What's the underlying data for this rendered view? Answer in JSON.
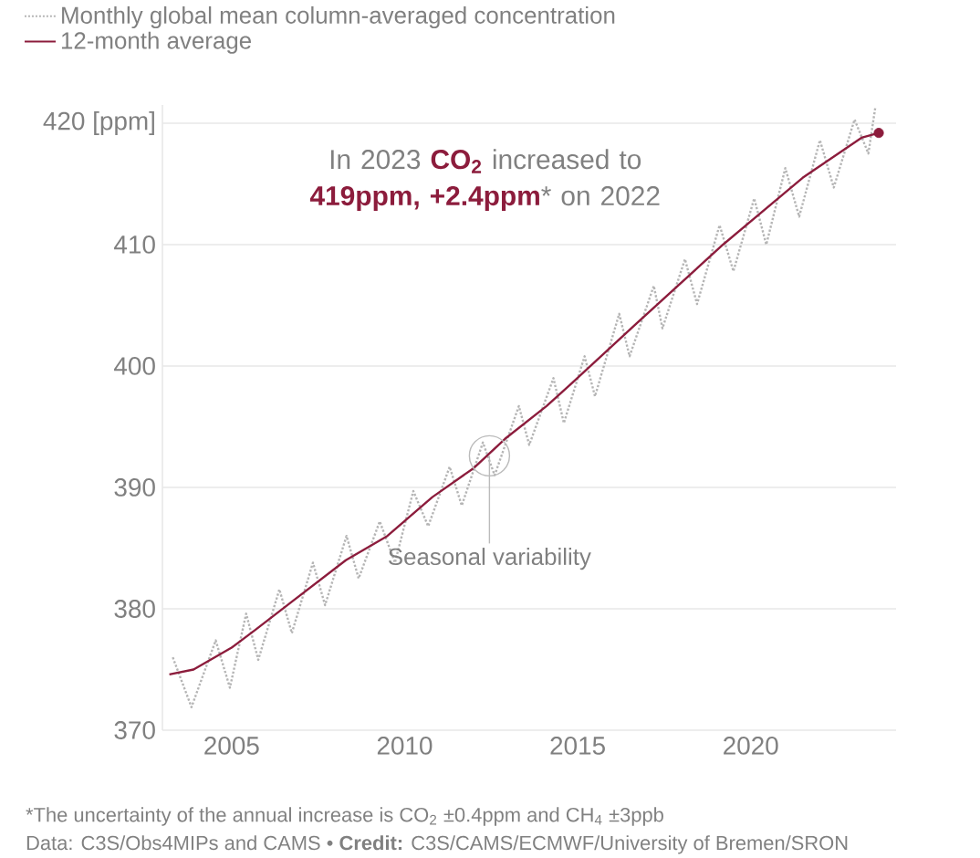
{
  "chart_data": {
    "type": "line",
    "xlim": [
      2003,
      2024.2
    ],
    "ylim": [
      370,
      421.5
    ],
    "xticks": [
      2005,
      2010,
      2015,
      2020
    ],
    "yticks": [
      370,
      380,
      390,
      400,
      410,
      {
        "value": 420,
        "label": "420 [ppm]"
      }
    ],
    "grid": "y",
    "legend": "top left",
    "series": [
      {
        "name": "Monthly global mean column-averaged concentration",
        "color": "#b5b5b5",
        "line_style": "dotted",
        "x": [
          2003.3,
          2003.84,
          2004.54,
          2004.95,
          2005.42,
          2005.77,
          2006.38,
          2006.74,
          2007.35,
          2007.7,
          2008.32,
          2008.67,
          2009.28,
          2009.72,
          2010.25,
          2010.68,
          2011.3,
          2011.65,
          2012.26,
          2012.6,
          2013.3,
          2013.6,
          2014.3,
          2014.6,
          2015.2,
          2015.5,
          2016.2,
          2016.5,
          2017.2,
          2017.45,
          2018.1,
          2018.45,
          2019.1,
          2019.5,
          2020.1,
          2020.45,
          2021.0,
          2021.4,
          2022.0,
          2022.4,
          2023.0,
          2023.4,
          2023.6
        ],
        "values": [
          376.0,
          371.9,
          377.4,
          373.5,
          379.6,
          375.8,
          381.6,
          378.0,
          383.8,
          380.3,
          386.0,
          382.5,
          387.2,
          383.8,
          389.7,
          386.8,
          391.7,
          388.5,
          393.7,
          391.0,
          396.7,
          393.5,
          399.0,
          395.3,
          400.8,
          397.5,
          404.3,
          400.8,
          406.6,
          403.1,
          408.8,
          405.1,
          411.6,
          407.8,
          413.8,
          410.0,
          416.3,
          412.3,
          418.6,
          414.7,
          420.3,
          417.5,
          421.3
        ]
      },
      {
        "name": "12-month average",
        "color": "#8c1c3c",
        "line_style": "solid",
        "x": [
          2003.2,
          2003.9,
          2005.0,
          2005.7,
          2006.7,
          2008.3,
          2009.5,
          2010.8,
          2012.0,
          2012.9,
          2014.1,
          2014.8,
          2016.7,
          2019.2,
          2021.5,
          2023.2,
          2023.7
        ],
        "values": [
          374.6,
          375.0,
          376.8,
          378.3,
          380.5,
          384.0,
          386.0,
          389.2,
          391.6,
          394.0,
          396.7,
          398.5,
          403.5,
          410.0,
          415.5,
          418.8,
          419.2
        ]
      },
      {
        "type": "scatter",
        "marker": "circle",
        "color": "#8c1c3c",
        "x": [
          2023.7
        ],
        "values": [
          419.2
        ]
      }
    ],
    "annotations": [
      "In 2023 **CO$_{2}$** increased to **419ppm, +2.4ppm*** on 2022",
      {
        "text": "Seasonal variability",
        "x": 2012.45,
        "y": 392.6
      },
      "*The uncertainty of the annual increase is CO$_{2}$ ±0.4ppm and CH$_{4}$ ±3ppb",
      "Data: C3S/Obs4MIPs and CAMS • **Credit:** C3S/CAMS/ECMWF/University of Bremen/SRON"
    ]
  }
}
